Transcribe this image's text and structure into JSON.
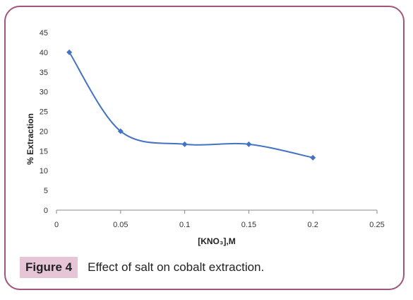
{
  "chart_data": {
    "type": "line",
    "xlabel": "[KNO₃],M",
    "ylabel": "% Extraction",
    "xlim": [
      0,
      0.25
    ],
    "ylim": [
      0,
      45
    ],
    "x_ticks": [
      "0",
      "0.05",
      "0.1",
      "0.15",
      "0.2",
      "0.25"
    ],
    "y_ticks": [
      "0",
      "5",
      "10",
      "15",
      "20",
      "25",
      "30",
      "35",
      "40",
      "45"
    ],
    "series": [
      {
        "x": [
          0.01,
          0.05,
          0.1,
          0.15,
          0.2
        ],
        "values": [
          40,
          20,
          16.7,
          16.7,
          13.3
        ],
        "marker": "diamond",
        "smooth": true
      }
    ],
    "colors": {
      "series": "#4472c4",
      "axis": "#888888",
      "frame": "#a0567a"
    },
    "grid": false
  },
  "caption": {
    "label": "Figure 4",
    "text": "Effect of salt on cobalt extraction."
  }
}
